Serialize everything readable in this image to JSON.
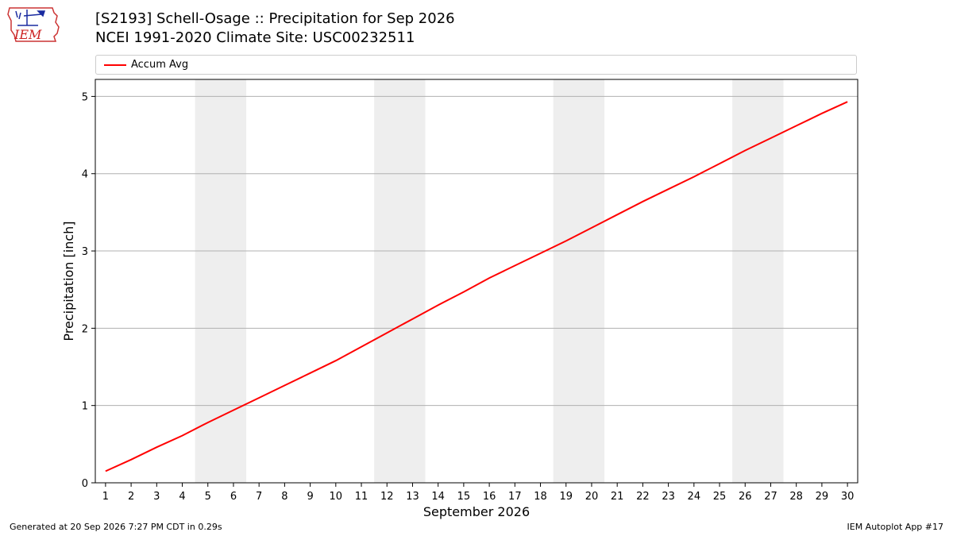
{
  "header": {
    "title_line1": "[S2193] Schell-Osage :: Precipitation for Sep 2026",
    "title_line2": "NCEI 1991-2020 Climate Site: USC00232511",
    "logo_text": "IEM"
  },
  "legend": {
    "label": "Accum Avg",
    "color": "#ff0000"
  },
  "footer": {
    "left": "Generated at 20 Sep 2026 7:27 PM CDT in 0.29s",
    "right": "IEM Autoplot App #17"
  },
  "chart_data": {
    "type": "line",
    "xlabel": "September 2026",
    "ylabel": "Precipitation [inch]",
    "xlim": [
      0.6,
      30.4
    ],
    "ylim": [
      0,
      5.22
    ],
    "x": [
      1,
      2,
      3,
      4,
      5,
      6,
      7,
      8,
      9,
      10,
      11,
      12,
      13,
      14,
      15,
      16,
      17,
      18,
      19,
      20,
      21,
      22,
      23,
      24,
      25,
      26,
      27,
      28,
      29,
      30
    ],
    "x_tick_labels": [
      "1",
      "2",
      "3",
      "4",
      "5",
      "6",
      "7",
      "8",
      "9",
      "10",
      "11",
      "12",
      "13",
      "14",
      "15",
      "16",
      "17",
      "18",
      "19",
      "20",
      "21",
      "22",
      "23",
      "24",
      "25",
      "26",
      "27",
      "28",
      "29",
      "30"
    ],
    "y_ticks": [
      0,
      1,
      2,
      3,
      4,
      5
    ],
    "y_tick_labels": [
      "0",
      "1",
      "2",
      "3",
      "4",
      "5"
    ],
    "grid": "horizontal",
    "legend_position": "top",
    "weekend_shading": [
      [
        4.5,
        6.5
      ],
      [
        11.5,
        13.5
      ],
      [
        18.5,
        20.5
      ],
      [
        25.5,
        27.5
      ]
    ],
    "weekend_color": "#eeeeee",
    "series": [
      {
        "name": "Accum Avg",
        "color": "#ff0000",
        "values": [
          0.15,
          0.3,
          0.46,
          0.61,
          0.78,
          0.94,
          1.1,
          1.26,
          1.42,
          1.58,
          1.76,
          1.94,
          2.12,
          2.3,
          2.47,
          2.65,
          2.81,
          2.97,
          3.13,
          3.3,
          3.47,
          3.64,
          3.8,
          3.96,
          4.13,
          4.3,
          4.46,
          4.62,
          4.78,
          4.93
        ]
      }
    ]
  }
}
